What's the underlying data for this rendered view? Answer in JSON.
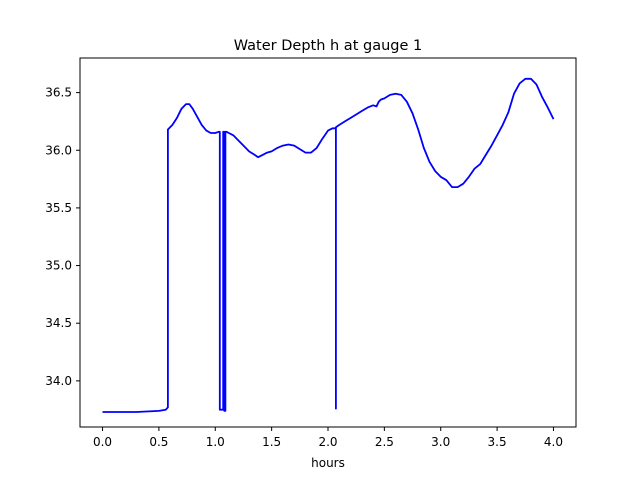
{
  "chart_data": {
    "type": "line",
    "title": "Water Depth h at gauge 1",
    "xlabel": "hours",
    "ylabel": "",
    "xlim": [
      -0.2,
      4.2
    ],
    "ylim": [
      33.6,
      36.8
    ],
    "xticks": [
      0.0,
      0.5,
      1.0,
      1.5,
      2.0,
      2.5,
      3.0,
      3.5,
      4.0
    ],
    "xtick_labels": [
      "0.0",
      "0.5",
      "1.0",
      "1.5",
      "2.0",
      "2.5",
      "3.0",
      "3.5",
      "4.0"
    ],
    "yticks": [
      34.0,
      34.5,
      35.0,
      35.5,
      36.0,
      36.5
    ],
    "ytick_labels": [
      "34.0",
      "34.5",
      "35.0",
      "35.5",
      "36.0",
      "36.5"
    ],
    "grid": false,
    "legend": "none",
    "series": [
      {
        "color": "#0000ff",
        "x": [
          0.0,
          0.3,
          0.5,
          0.56,
          0.58,
          0.58,
          0.62,
          0.66,
          0.7,
          0.74,
          0.77,
          0.8,
          0.84,
          0.88,
          0.92,
          0.96,
          1.0,
          1.03,
          1.04,
          1.04,
          1.07,
          1.07,
          1.08,
          1.08,
          1.09,
          1.09,
          1.1,
          1.12,
          1.16,
          1.2,
          1.25,
          1.3,
          1.35,
          1.38,
          1.42,
          1.46,
          1.5,
          1.55,
          1.6,
          1.65,
          1.7,
          1.75,
          1.8,
          1.85,
          1.9,
          1.95,
          2.0,
          2.04,
          2.07,
          2.07,
          2.07,
          2.1,
          2.15,
          2.2,
          2.25,
          2.3,
          2.35,
          2.4,
          2.43,
          2.45,
          2.47,
          2.5,
          2.55,
          2.6,
          2.65,
          2.7,
          2.75,
          2.8,
          2.85,
          2.9,
          2.95,
          3.0,
          3.05,
          3.1,
          3.15,
          3.2,
          3.25,
          3.3,
          3.35,
          3.4,
          3.45,
          3.5,
          3.55,
          3.6,
          3.65,
          3.7,
          3.75,
          3.8,
          3.85,
          3.9,
          3.95,
          4.0
        ],
        "y": [
          33.73,
          33.73,
          33.74,
          33.75,
          33.77,
          36.18,
          36.22,
          36.28,
          36.36,
          36.4,
          36.4,
          36.36,
          36.29,
          36.22,
          36.17,
          36.15,
          36.15,
          36.16,
          36.16,
          33.75,
          33.75,
          36.16,
          36.16,
          33.74,
          33.74,
          36.16,
          36.16,
          36.15,
          36.13,
          36.09,
          36.04,
          35.99,
          35.96,
          35.94,
          35.96,
          35.98,
          35.99,
          36.02,
          36.04,
          36.05,
          36.04,
          36.01,
          35.98,
          35.98,
          36.02,
          36.1,
          36.17,
          36.19,
          36.19,
          33.76,
          36.2,
          36.22,
          36.25,
          36.28,
          36.31,
          36.34,
          36.37,
          36.39,
          36.38,
          36.42,
          36.44,
          36.45,
          36.48,
          36.49,
          36.48,
          36.42,
          36.32,
          36.18,
          36.02,
          35.9,
          35.82,
          35.77,
          35.74,
          35.68,
          35.68,
          35.71,
          35.77,
          35.84,
          35.88,
          35.96,
          36.04,
          36.13,
          36.22,
          36.33,
          36.49,
          36.58,
          36.62,
          36.62,
          36.57,
          36.46,
          36.37,
          36.27
        ]
      }
    ]
  }
}
